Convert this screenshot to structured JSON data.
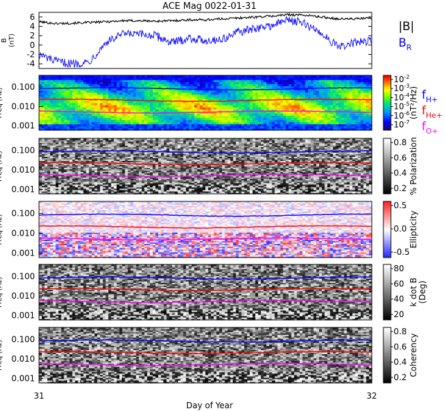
{
  "title": "ACE Mag 0022-01-31",
  "colors": {
    "bt": "#000000",
    "br": "#0000ff",
    "fh": "#0000ff",
    "fhe": "#ff0000",
    "fo": "#ff00ff"
  },
  "legend_top": [
    {
      "text": "|B|",
      "color": "#000000"
    },
    {
      "text": "B",
      "sub": "R",
      "color": "#0000ff"
    }
  ],
  "legend_freq": [
    {
      "text": "f",
      "sub": "H+",
      "color": "#0000ff"
    },
    {
      "text": "f",
      "sub": "He+",
      "color": "#ff0000"
    },
    {
      "text": "f",
      "sub": "O+",
      "color": "#ff00ff"
    }
  ],
  "xaxis": {
    "label": "Day of Year",
    "start_label": "31",
    "end_label": "32"
  },
  "chart_data": [
    {
      "type": "line",
      "ylabel": "B\n(nT)",
      "ylim": [
        -5,
        7
      ],
      "yticks": [
        "6",
        "4",
        "2",
        "0",
        "-2",
        "-4"
      ],
      "x": [
        31.0,
        31.05,
        31.1,
        31.15,
        31.2,
        31.25,
        31.3,
        31.35,
        31.4,
        31.45,
        31.5,
        31.55,
        31.6,
        31.65,
        31.7,
        31.75,
        31.8,
        31.85,
        31.9,
        31.95,
        32.0
      ],
      "series": [
        {
          "name": "|B|",
          "values": [
            5.0,
            4.6,
            4.7,
            4.8,
            5.0,
            5.2,
            5.2,
            5.1,
            5.2,
            5.4,
            5.4,
            5.6,
            5.8,
            6.0,
            6.2,
            6.5,
            6.4,
            6.0,
            5.6,
            5.6,
            5.8
          ]
        },
        {
          "name": "B_R",
          "values": [
            -2.0,
            -3.5,
            -4.0,
            -3.6,
            0.5,
            2.3,
            2.3,
            2.0,
            0.5,
            1.5,
            1.0,
            1.2,
            2.8,
            3.5,
            4.2,
            5.5,
            4.5,
            2.5,
            -0.5,
            0.5,
            1.0
          ]
        }
      ]
    },
    {
      "type": "heatmap",
      "ylabel": "Freq (Hz)",
      "yticks": [
        "0.100",
        "0.010",
        "0.001"
      ],
      "colorbar_ticks": [
        "10^-2",
        "10^-3",
        "10^-4",
        "10^-5",
        "10^-6",
        "10^-7"
      ],
      "colorbar_label": "(nT²/Hz)",
      "lines": {
        "f_H+": 0.082,
        "f_He+": 0.021,
        "f_O+": 0.0052
      }
    },
    {
      "type": "heatmap",
      "ylabel": "Freq (Hz)",
      "yticks": [
        "0.100",
        "0.010",
        "0.001"
      ],
      "colorbar_ticks": [
        "0.8",
        "0.6",
        "0.4",
        "0.2"
      ],
      "colorbar_label": "% Polarization",
      "lines": {
        "f_H+": 0.082,
        "f_He+": 0.021,
        "f_O+": 0.0052
      }
    },
    {
      "type": "heatmap",
      "ylabel": "Freq (Hz)",
      "yticks": [
        "0.100",
        "0.010",
        "0.001"
      ],
      "colorbar_ticks": [
        "0.5",
        "0.0",
        "-0.5"
      ],
      "colorbar_label": "Ellipticity",
      "lines": {
        "f_H+": 0.082,
        "f_He+": 0.021,
        "f_O+": 0.0052
      }
    },
    {
      "type": "heatmap",
      "ylabel": "Freq (Hz)",
      "yticks": [
        "0.100",
        "0.010",
        "0.001"
      ],
      "colorbar_ticks": [
        "80",
        "60",
        "40",
        "20"
      ],
      "colorbar_label": "k dot B\n(Deg)",
      "lines": {
        "f_H+": 0.082,
        "f_He+": 0.021,
        "f_O+": 0.0052
      }
    },
    {
      "type": "heatmap",
      "ylabel": "Freq (Hz)",
      "yticks": [
        "0.100",
        "0.010",
        "0.001"
      ],
      "colorbar_ticks": [
        "0.8",
        "0.6",
        "0.4",
        "0.2"
      ],
      "colorbar_label": "Coherency",
      "lines": {
        "f_H+": 0.082,
        "f_He+": 0.021,
        "f_O+": 0.0052
      }
    }
  ]
}
